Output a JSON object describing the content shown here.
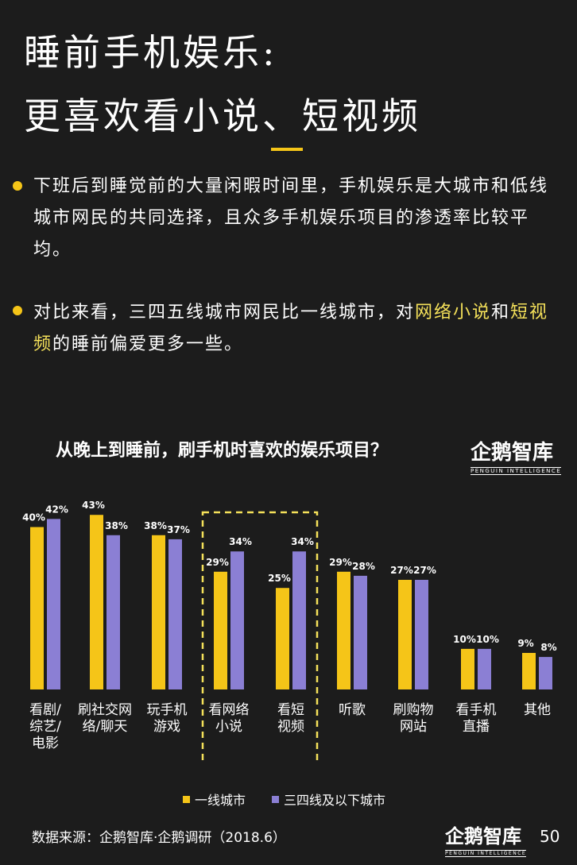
{
  "title": {
    "line1": "睡前手机娱乐:",
    "line2": "更喜欢看小说、短视频"
  },
  "bullets": [
    {
      "text": "下班后到睡觉前的大量闲暇时间里，手机娱乐是大城市和低线城市网民的共同选择，且众多手机娱乐项目的渗透率比较平均。"
    },
    {
      "part1": "对比来看，三四五线城市网民比一线城市，对",
      "hl1": "网络小说",
      "part2": "和",
      "hl2": "短视频",
      "part3": "的睡前偏爱更多一些。"
    }
  ],
  "logo": {
    "main": "企鹅智库",
    "sub": "PENGUIN INTELLIGENCE"
  },
  "colors": {
    "tier1": "#f5c518",
    "tier3": "#8b7fd4",
    "highlight_box": "#f5e15a"
  },
  "chart_data": {
    "type": "bar",
    "title": "从晚上到睡前，刷手机时喜欢的娱乐项目？",
    "categories": [
      "看剧/综艺/电影",
      "刷社交网络/聊天",
      "玩手机游戏",
      "看网络小说",
      "看短视频",
      "听歌",
      "刷购物网站",
      "看手机直播",
      "其他"
    ],
    "category_lines": [
      [
        "看剧/",
        "综艺/",
        "电影"
      ],
      [
        "刷社交网",
        "络/聊天"
      ],
      [
        "玩手机",
        "游戏"
      ],
      [
        "看网络",
        "小说"
      ],
      [
        "看短",
        "视频"
      ],
      [
        "听歌"
      ],
      [
        "刷购物",
        "网站"
      ],
      [
        "看手机",
        "直播"
      ],
      [
        "其他"
      ]
    ],
    "series": [
      {
        "name": "一线城市",
        "values": [
          40,
          43,
          38,
          29,
          25,
          29,
          27,
          10,
          9
        ]
      },
      {
        "name": "三四线及以下城市",
        "values": [
          42,
          38,
          37,
          34,
          34,
          28,
          27,
          10,
          8
        ]
      }
    ],
    "unit": "%",
    "ylim": [
      0,
      45
    ],
    "highlighted": [
      "看网络小说",
      "看短视频"
    ],
    "legend_position": "bottom"
  },
  "source": "数据来源：企鹅智库·企鹅调研（2018.6）",
  "page_number": "50"
}
